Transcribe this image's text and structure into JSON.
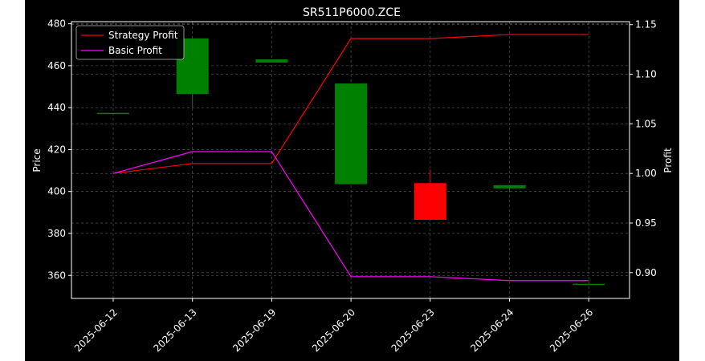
{
  "chart_data": {
    "type": "candlestick-line",
    "title": "SR511P6000.ZCE",
    "xlabel": "",
    "ylabel_left": "Price",
    "ylabel_right": "Profit",
    "categories": [
      "2025-06-12",
      "2025-06-13",
      "2025-06-19",
      "2025-06-20",
      "2025-06-23",
      "2025-06-24",
      "2025-06-26"
    ],
    "ylim_left": [
      349,
      481
    ],
    "yticks_left": [
      360,
      380,
      400,
      420,
      440,
      460,
      480
    ],
    "ylim_right": [
      0.874,
      1.153
    ],
    "yticks_right": [
      0.9,
      0.95,
      1.0,
      1.05,
      1.1,
      1.15
    ],
    "ytick_labels_right": [
      "0.90",
      "0.95",
      "1.00",
      "1.05",
      "1.10",
      "1.15"
    ],
    "candles": [
      {
        "date": "2025-06-12",
        "open": 437.5,
        "close": 437.5,
        "high": 437.5,
        "low": 437.5
      },
      {
        "date": "2025-06-13",
        "open": 446.5,
        "close": 473,
        "high": 473,
        "low": 440
      },
      {
        "date": "2025-06-19",
        "open": 461.5,
        "close": 463,
        "high": 463,
        "low": 461.5
      },
      {
        "date": "2025-06-20",
        "open": 403.5,
        "close": 451.5,
        "high": 451.5,
        "low": 403.5
      },
      {
        "date": "2025-06-23",
        "open": 404,
        "close": 386.5,
        "high": 410.5,
        "low": 386.5
      },
      {
        "date": "2025-06-24",
        "open": 401.5,
        "close": 403,
        "high": 403,
        "low": 400
      },
      {
        "date": "2025-06-26",
        "open": 356,
        "close": 356,
        "high": 356,
        "low": 356
      }
    ],
    "series": [
      {
        "name": "Strategy Profit",
        "color": "#ff0000",
        "values": [
          1.0,
          1.01,
          1.01,
          1.136,
          1.136,
          1.14,
          1.14
        ]
      },
      {
        "name": "Basic Profit",
        "color": "#ff00ff",
        "values": [
          1.0,
          1.022,
          1.022,
          0.896,
          0.896,
          0.892,
          0.892
        ]
      }
    ],
    "candle_up_color": "#008000",
    "candle_down_color": "#ff0000",
    "grid": true,
    "legend_position": "top-left"
  }
}
